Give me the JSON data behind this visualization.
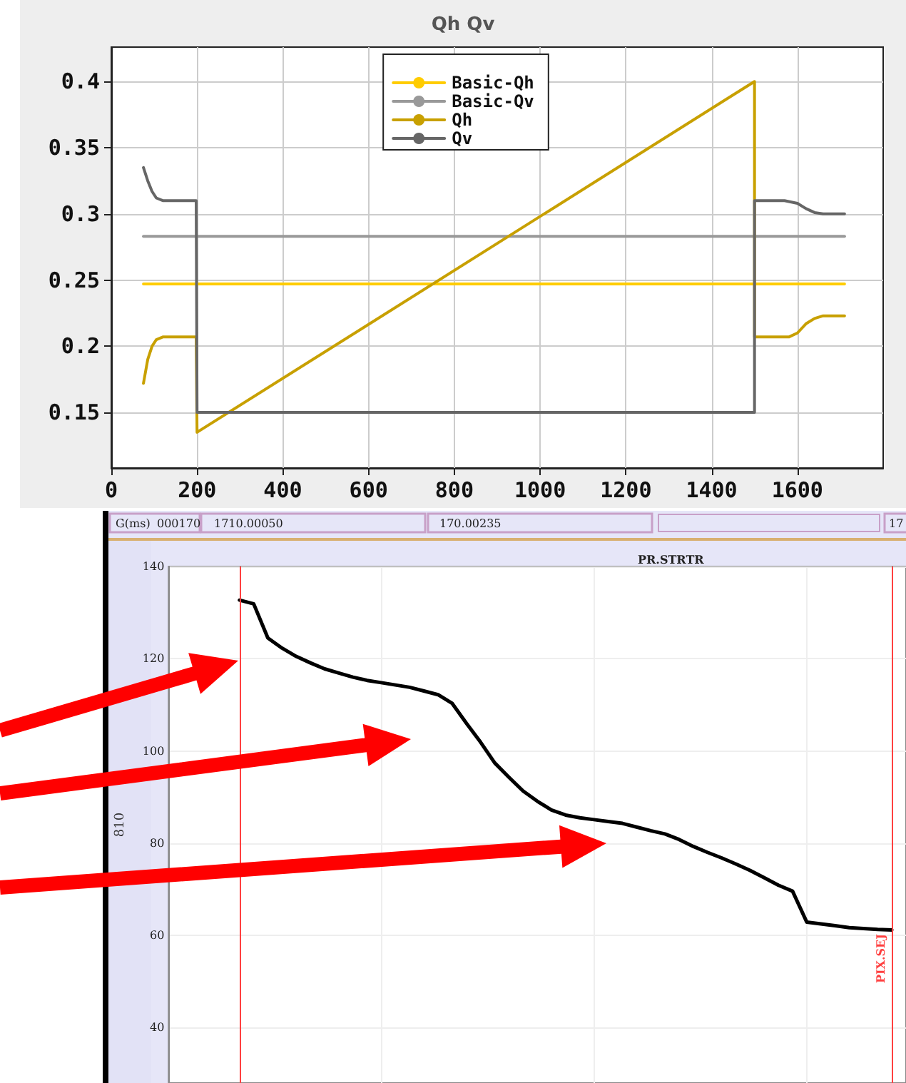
{
  "chart_data": [
    {
      "type": "line",
      "title": "Qh Qv",
      "xlim": [
        0,
        1800
      ],
      "ylim": [
        0.108,
        0.426
      ],
      "xticks": [
        0,
        200,
        400,
        600,
        800,
        1000,
        1200,
        1400,
        1600
      ],
      "yticks": [
        0.15,
        0.2,
        0.25,
        0.3,
        0.35,
        0.4
      ],
      "grid": true,
      "legend": "top",
      "series": [
        {
          "name": "Basic-Qh",
          "color": "#ffcc00",
          "x": [
            75,
            1710
          ],
          "values": [
            0.247,
            0.247
          ]
        },
        {
          "name": "Basic-Qv",
          "color": "#999999",
          "x": [
            75,
            1710
          ],
          "values": [
            0.283,
            0.283
          ]
        },
        {
          "name": "Qh",
          "color": "#c8a000",
          "x": [
            75,
            85,
            95,
            105,
            120,
            198,
            200,
            1500,
            1500,
            1580,
            1600,
            1620,
            1640,
            1660,
            1710
          ],
          "values": [
            0.172,
            0.19,
            0.2,
            0.205,
            0.207,
            0.207,
            0.135,
            0.4,
            0.207,
            0.207,
            0.21,
            0.217,
            0.221,
            0.223,
            0.223
          ]
        },
        {
          "name": "Qv",
          "color": "#666666",
          "x": [
            75,
            85,
            95,
            105,
            120,
            198,
            200,
            1500,
            1500,
            1570,
            1600,
            1620,
            1640,
            1660,
            1710
          ],
          "values": [
            0.335,
            0.325,
            0.317,
            0.312,
            0.31,
            0.31,
            0.15,
            0.15,
            0.31,
            0.31,
            0.308,
            0.304,
            0.301,
            0.3,
            0.3
          ]
        }
      ]
    },
    {
      "type": "line",
      "title": "PR.STRTR",
      "ylabel": "810",
      "tick_labels": "y",
      "grid": true,
      "ylim": [
        28,
        140
      ],
      "yticks": [
        40,
        60,
        80,
        100,
        120,
        140
      ],
      "categories": [
        null,
        null,
        null,
        null,
        null,
        null,
        null,
        null,
        null,
        null,
        null,
        null,
        null,
        null,
        null,
        null,
        null,
        null,
        null,
        null,
        null,
        null,
        null,
        null,
        null,
        null,
        null,
        null,
        null,
        null,
        null,
        null,
        null,
        null,
        null,
        null,
        null,
        null,
        null,
        null,
        null,
        null,
        null,
        null,
        null,
        null,
        null,
        null,
        null,
        null,
        null,
        null,
        null
      ],
      "annotations": [
        "G(ms)",
        "000170",
        "1710.00050",
        "170.00235",
        "17",
        "PIX.SEJ"
      ],
      "series": [
        {
          "color": "#000000",
          "values": [
            null,
            null,
            null,
            null,
            null,
            132.7,
            131.9,
            124.5,
            122.3,
            120.5,
            119.1,
            117.8,
            116.9,
            116.0,
            115.3,
            114.8,
            114.3,
            113.8,
            113.0,
            112.2,
            110.3,
            106.0,
            101.9,
            97.4,
            94.3,
            91.3,
            89.1,
            87.2,
            86.1,
            85.5,
            85.1,
            84.7,
            84.3,
            83.5,
            82.7,
            82.0,
            80.8,
            79.3,
            78.0,
            76.8,
            75.5,
            74.1,
            72.5,
            70.9,
            69.6,
            62.9,
            62.5,
            62.1,
            61.7,
            61.5,
            61.3,
            61.2,
            null
          ]
        }
      ]
    }
  ]
}
